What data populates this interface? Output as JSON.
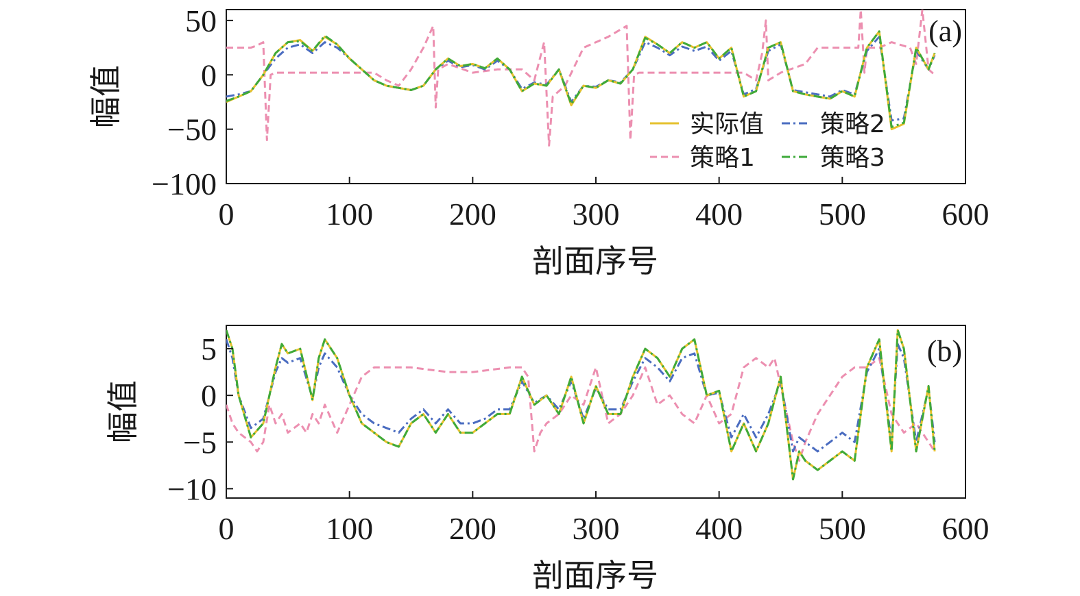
{
  "chart_data": [
    {
      "type": "line",
      "panel_label": "(a)",
      "xlabel": "剖面序号",
      "ylabel": "幅值",
      "xlim": [
        0,
        600
      ],
      "ylim": [
        -100,
        60
      ],
      "xticks": [
        0,
        100,
        200,
        300,
        400,
        500,
        600
      ],
      "yticks": [
        50,
        0,
        -50,
        -100
      ],
      "xtick_labels": [
        "0",
        "100",
        "200",
        "300",
        "400",
        "500",
        "600"
      ],
      "ytick_labels": [
        "50",
        "0",
        "−50",
        "−100"
      ],
      "grid": false,
      "legend_position": "bottom-right",
      "legend_columns": 2,
      "legend": [
        "实际值",
        "策略2",
        "策略1",
        "策略3"
      ],
      "series": [
        {
          "name": "实际值",
          "color": "#e5c12e",
          "dash": "solid",
          "x": [
            0,
            10,
            20,
            30,
            40,
            50,
            60,
            70,
            80,
            90,
            100,
            110,
            120,
            130,
            140,
            150,
            160,
            170,
            180,
            190,
            200,
            210,
            220,
            230,
            240,
            250,
            260,
            270,
            280,
            290,
            300,
            310,
            320,
            330,
            340,
            350,
            360,
            370,
            380,
            390,
            400,
            410,
            420,
            430,
            440,
            450,
            460,
            470,
            480,
            490,
            500,
            510,
            520,
            530,
            540,
            550,
            560,
            570,
            575
          ],
          "y": [
            -25,
            -20,
            -15,
            0,
            20,
            30,
            32,
            22,
            35,
            28,
            15,
            5,
            -5,
            -10,
            -12,
            -14,
            -10,
            5,
            15,
            8,
            10,
            6,
            15,
            5,
            -15,
            -8,
            -10,
            5,
            -28,
            -10,
            -12,
            -5,
            -8,
            5,
            35,
            28,
            20,
            30,
            25,
            30,
            15,
            25,
            -20,
            -15,
            25,
            30,
            -15,
            -18,
            -20,
            -22,
            -15,
            -20,
            25,
            40,
            -50,
            -45,
            25,
            5,
            20
          ]
        },
        {
          "name": "策略1",
          "color": "#ec8fb0",
          "dash": "dashed",
          "x": [
            0,
            10,
            20,
            25,
            30,
            33,
            36,
            40,
            50,
            100,
            120,
            130,
            140,
            150,
            160,
            168,
            170,
            172,
            180,
            200,
            220,
            240,
            250,
            258,
            262,
            265,
            275,
            290,
            310,
            325,
            328,
            331,
            335,
            345,
            420,
            430,
            435,
            438,
            440,
            450,
            470,
            480,
            490,
            510,
            513,
            515,
            518,
            520,
            530,
            540,
            555,
            560,
            565,
            570,
            575
          ],
          "y": [
            25,
            25,
            25,
            27,
            30,
            -60,
            0,
            2,
            2,
            2,
            2,
            -5,
            -10,
            5,
            25,
            45,
            -30,
            5,
            10,
            2,
            5,
            5,
            -5,
            30,
            -65,
            -20,
            -10,
            25,
            35,
            45,
            -60,
            0,
            2,
            2,
            2,
            -5,
            20,
            50,
            -5,
            2,
            10,
            25,
            25,
            25,
            25,
            60,
            2,
            25,
            25,
            30,
            25,
            10,
            60,
            5,
            0
          ]
        },
        {
          "name": "策略2",
          "color": "#4a6cc0",
          "dash": "dashdot",
          "x": [
            0,
            10,
            20,
            30,
            40,
            50,
            60,
            70,
            80,
            90,
            100,
            110,
            120,
            130,
            140,
            150,
            160,
            170,
            180,
            190,
            200,
            210,
            220,
            230,
            240,
            250,
            260,
            270,
            280,
            290,
            300,
            310,
            320,
            330,
            340,
            350,
            360,
            370,
            380,
            390,
            400,
            410,
            420,
            430,
            440,
            450,
            460,
            470,
            480,
            490,
            500,
            510,
            520,
            530,
            540,
            550,
            560,
            570,
            575
          ],
          "y": [
            -20,
            -18,
            -15,
            0,
            15,
            25,
            28,
            20,
            30,
            25,
            15,
            5,
            -5,
            -10,
            -12,
            -14,
            -10,
            5,
            13,
            7,
            9,
            5,
            13,
            5,
            -13,
            -7,
            -9,
            5,
            -25,
            -10,
            -11,
            -5,
            -7,
            5,
            30,
            25,
            18,
            26,
            22,
            26,
            13,
            22,
            -18,
            -13,
            22,
            28,
            -14,
            -16,
            -18,
            -20,
            -14,
            -18,
            22,
            35,
            -42,
            -40,
            22,
            5,
            18
          ]
        },
        {
          "name": "策略3",
          "color": "#3eaa3a",
          "dash": "dashdot",
          "x": [
            0,
            10,
            20,
            30,
            40,
            50,
            60,
            70,
            80,
            90,
            100,
            110,
            120,
            130,
            140,
            150,
            160,
            170,
            180,
            190,
            200,
            210,
            220,
            230,
            240,
            250,
            260,
            270,
            280,
            290,
            300,
            310,
            320,
            330,
            340,
            350,
            360,
            370,
            380,
            390,
            400,
            410,
            420,
            430,
            440,
            450,
            460,
            470,
            480,
            490,
            500,
            510,
            520,
            530,
            540,
            550,
            560,
            570,
            575
          ],
          "y": [
            -24,
            -20,
            -15,
            0,
            20,
            30,
            31,
            22,
            36,
            28,
            15,
            5,
            -5,
            -10,
            -12,
            -14,
            -10,
            5,
            15,
            8,
            10,
            6,
            15,
            5,
            -15,
            -8,
            -10,
            5,
            -27,
            -10,
            -12,
            -5,
            -8,
            5,
            34,
            28,
            20,
            30,
            25,
            30,
            15,
            25,
            -20,
            -15,
            25,
            30,
            -15,
            -18,
            -20,
            -22,
            -15,
            -20,
            25,
            40,
            -48,
            -44,
            25,
            5,
            20
          ]
        }
      ]
    },
    {
      "type": "line",
      "panel_label": "(b)",
      "xlabel": "剖面序号",
      "ylabel": "幅值",
      "xlim": [
        0,
        600
      ],
      "ylim": [
        -11,
        7.5
      ],
      "xticks": [
        0,
        100,
        200,
        300,
        400,
        500,
        600
      ],
      "yticks": [
        5,
        0,
        -5,
        -10
      ],
      "xtick_labels": [
        "0",
        "100",
        "200",
        "300",
        "400",
        "500",
        "600"
      ],
      "ytick_labels": [
        "5",
        "0",
        "−5",
        "−10"
      ],
      "grid": false,
      "series": [
        {
          "name": "实际值",
          "color": "#e5c12e",
          "dash": "solid",
          "x": [
            0,
            5,
            10,
            20,
            30,
            40,
            45,
            50,
            60,
            70,
            75,
            80,
            90,
            100,
            110,
            120,
            130,
            140,
            150,
            160,
            170,
            180,
            190,
            200,
            210,
            220,
            230,
            240,
            250,
            260,
            270,
            280,
            290,
            300,
            310,
            320,
            330,
            340,
            350,
            360,
            370,
            380,
            390,
            400,
            410,
            420,
            430,
            440,
            450,
            460,
            465,
            470,
            480,
            490,
            500,
            510,
            520,
            530,
            540,
            545,
            550,
            560,
            570,
            575
          ],
          "y": [
            7,
            5,
            0,
            -4.5,
            -3,
            3,
            5.5,
            4.5,
            5,
            -0.5,
            4,
            6,
            4,
            0,
            -3,
            -4,
            -5,
            -5.5,
            -3,
            -2,
            -4,
            -2,
            -4,
            -4,
            -3,
            -2,
            -2,
            2,
            -1,
            0,
            -2,
            2,
            -3,
            1,
            -2,
            -2,
            2,
            5,
            4,
            2,
            5,
            6,
            0,
            0.5,
            -6,
            -3,
            -6,
            -3,
            2,
            -9,
            -6,
            -7,
            -8,
            -7,
            -6,
            -7,
            3,
            6,
            -6,
            7,
            5,
            -6,
            1,
            -6
          ]
        },
        {
          "name": "策略1",
          "color": "#ec8fb0",
          "dash": "dashed",
          "x": [
            0,
            5,
            10,
            20,
            25,
            30,
            35,
            40,
            45,
            50,
            60,
            65,
            70,
            75,
            80,
            90,
            100,
            110,
            120,
            125,
            130,
            150,
            180,
            200,
            230,
            240,
            245,
            250,
            255,
            260,
            270,
            280,
            290,
            300,
            305,
            310,
            320,
            330,
            340,
            350,
            360,
            370,
            380,
            390,
            400,
            410,
            420,
            430,
            440,
            445,
            450,
            460,
            465,
            470,
            480,
            490,
            500,
            510,
            520,
            530,
            540,
            550,
            560,
            570,
            575
          ],
          "y": [
            -1,
            -3,
            -4,
            -5,
            -6,
            -5,
            -1,
            -3,
            -2,
            -4,
            -3,
            -4,
            -2,
            -3,
            -1,
            -4,
            -1,
            2,
            3,
            3,
            3,
            3,
            2.5,
            2.5,
            3,
            3,
            2,
            -6,
            -4,
            -3,
            -2,
            0,
            -1,
            3,
            0,
            -3,
            -2,
            0,
            3,
            -1,
            0,
            -2,
            -3,
            0,
            -3,
            -2,
            3,
            4,
            3,
            4,
            1,
            -5,
            -7,
            -5,
            -2,
            0,
            2,
            3,
            3,
            4,
            -2,
            -4,
            -3,
            -5,
            -6
          ]
        },
        {
          "name": "策略2",
          "color": "#4a6cc0",
          "dash": "dashdot",
          "x": [
            0,
            5,
            10,
            20,
            30,
            40,
            45,
            50,
            60,
            70,
            75,
            80,
            90,
            100,
            110,
            120,
            130,
            140,
            150,
            160,
            170,
            180,
            190,
            200,
            210,
            220,
            230,
            240,
            250,
            260,
            270,
            280,
            290,
            300,
            310,
            320,
            330,
            340,
            350,
            360,
            370,
            380,
            390,
            400,
            410,
            420,
            430,
            440,
            450,
            460,
            465,
            470,
            480,
            490,
            500,
            510,
            520,
            530,
            540,
            545,
            550,
            560,
            570,
            575
          ],
          "y": [
            6,
            4,
            0,
            -3.5,
            -2.5,
            2.5,
            4,
            3.5,
            4,
            -0.3,
            3,
            4.5,
            3,
            0,
            -2,
            -3,
            -3.5,
            -4,
            -2.5,
            -1.5,
            -3,
            -1.5,
            -3,
            -3,
            -2.5,
            -1.5,
            -1.5,
            1.5,
            -0.8,
            0,
            -1.5,
            1.5,
            -2.5,
            0.8,
            -1.5,
            -1.5,
            1.5,
            4,
            3,
            1.5,
            4,
            4.5,
            0,
            0.3,
            -4.5,
            -2,
            -4.5,
            -2,
            1.5,
            -6,
            -4.5,
            -5,
            -6,
            -5,
            -4,
            -5,
            2.5,
            5,
            -5,
            5.5,
            4,
            -5,
            0.8,
            -5
          ]
        },
        {
          "name": "策略3",
          "color": "#3eaa3a",
          "dash": "dashdot",
          "x": [
            0,
            5,
            10,
            20,
            30,
            40,
            45,
            50,
            60,
            70,
            75,
            80,
            90,
            100,
            110,
            120,
            130,
            140,
            150,
            160,
            170,
            180,
            190,
            200,
            210,
            220,
            230,
            240,
            250,
            260,
            270,
            280,
            290,
            300,
            310,
            320,
            330,
            340,
            350,
            360,
            370,
            380,
            390,
            400,
            410,
            420,
            430,
            440,
            450,
            460,
            465,
            470,
            480,
            490,
            500,
            510,
            520,
            530,
            540,
            545,
            550,
            560,
            570,
            575
          ],
          "y": [
            7,
            5,
            0,
            -4.5,
            -3,
            3,
            5.5,
            4.5,
            5,
            -0.5,
            4,
            6,
            4,
            0,
            -3,
            -4,
            -5,
            -5.5,
            -3,
            -2,
            -4,
            -2,
            -4,
            -4,
            -3,
            -2,
            -2,
            2,
            -1,
            0,
            -2,
            2,
            -3,
            1,
            -2,
            -2,
            2,
            5,
            4,
            2,
            5,
            6,
            0,
            0.5,
            -6,
            -3,
            -6,
            -3,
            2,
            -9,
            -6,
            -7,
            -8,
            -7,
            -6,
            -7,
            3,
            6,
            -6,
            7,
            5,
            -6,
            1,
            -6
          ]
        }
      ]
    }
  ]
}
